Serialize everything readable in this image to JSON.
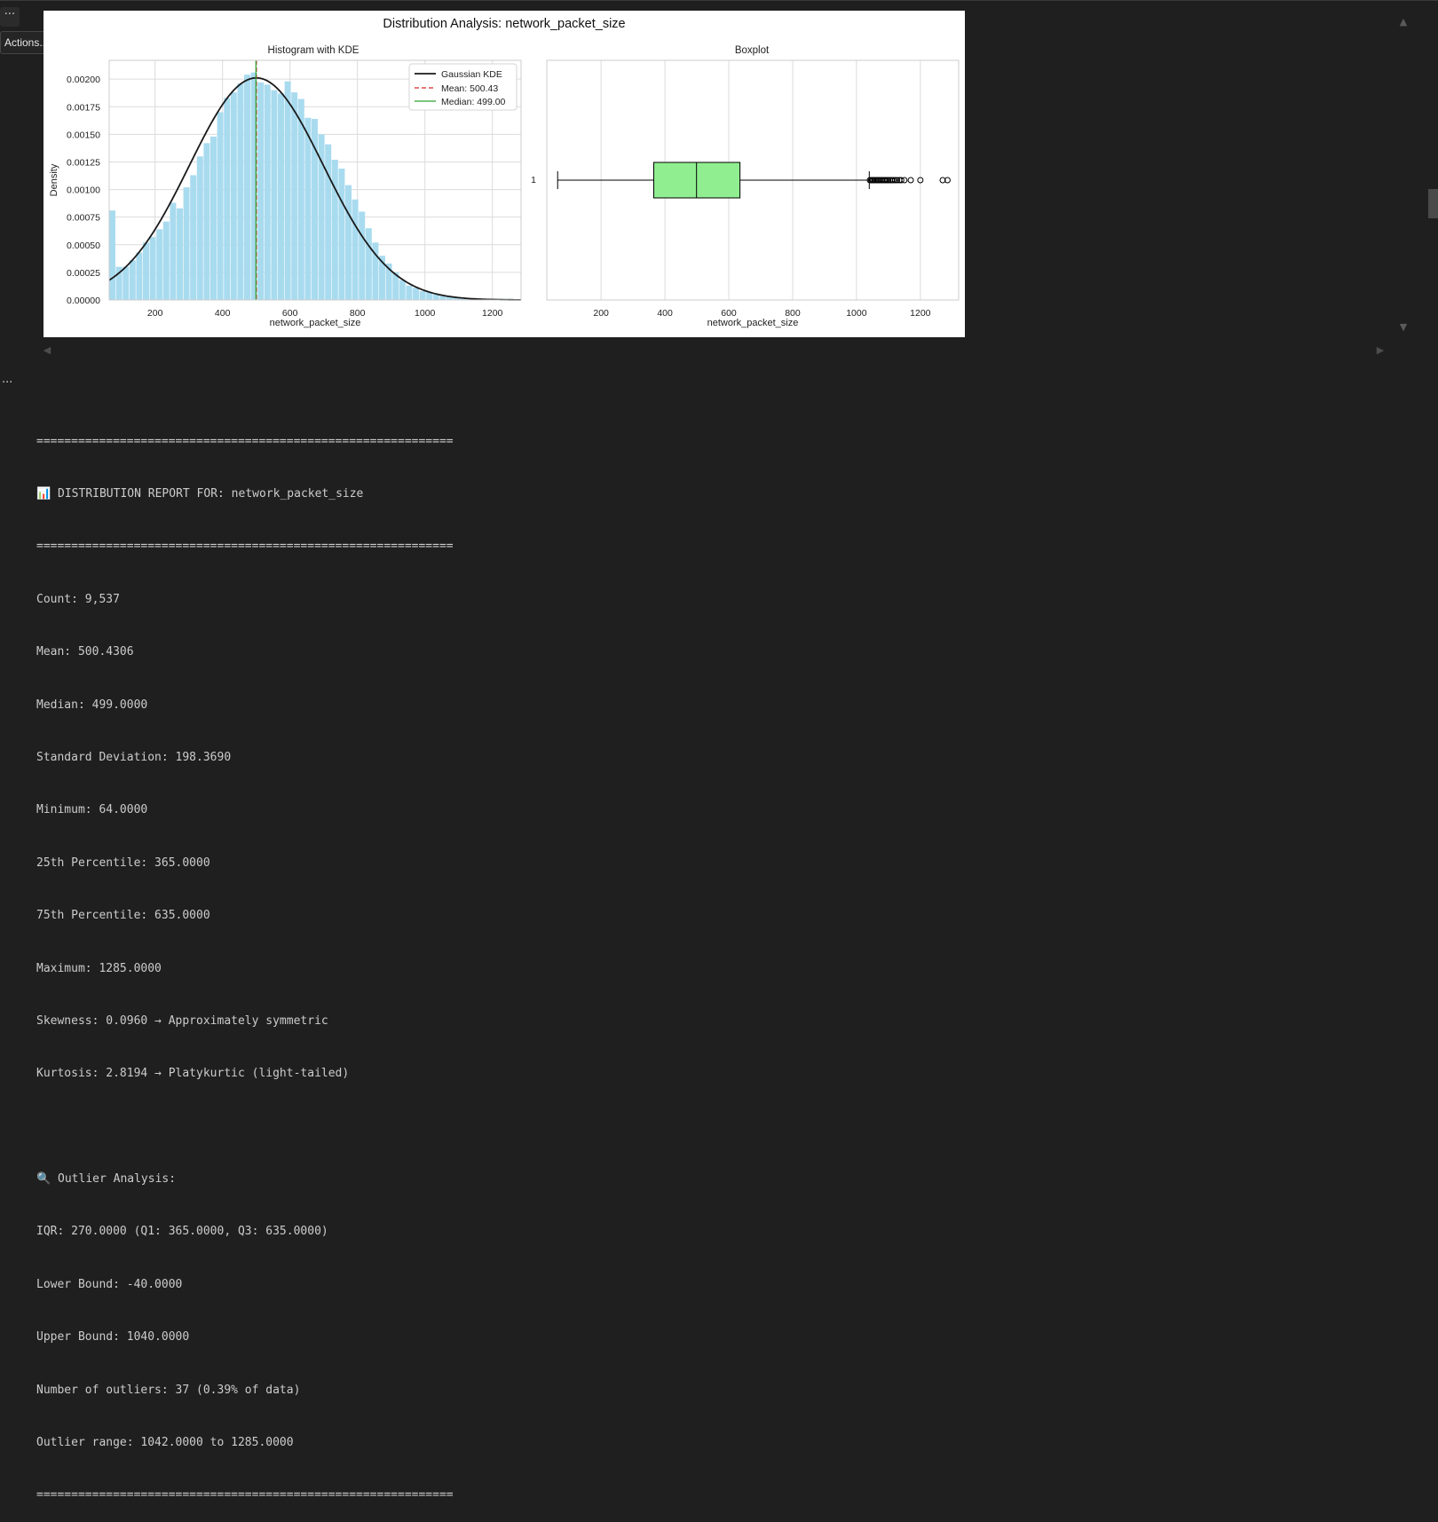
{
  "toolbar": {
    "actions_tooltip": "Actions...",
    "more_icon": "ellipsis-icon"
  },
  "figure": {
    "suptitle": "Distribution Analysis: network_packet_size",
    "histogram": {
      "title": "Histogram with KDE",
      "xlabel": "network_packet_size",
      "ylabel": "Density",
      "legend": [
        "Gaussian KDE",
        "Mean: 500.43",
        "Median: 499.00"
      ],
      "colors": {
        "bars": "#a9dbef",
        "kde": "#1a1a1a",
        "mean": "#d62728",
        "median": "#2ca02c"
      }
    },
    "boxplot": {
      "title": "Boxplot",
      "xlabel": "network_packet_size",
      "ytick": "1",
      "colors": {
        "box": "#90ee90"
      }
    }
  },
  "chart_data": [
    {
      "type": "bar",
      "title": "Histogram with KDE",
      "xlabel": "network_packet_size",
      "ylabel": "Density",
      "xlim": [
        64,
        1285
      ],
      "ylim": [
        0,
        0.00217
      ],
      "xticks": [
        "200",
        "400",
        "600",
        "800",
        "1000",
        "1200"
      ],
      "yticks": [
        "0.00000",
        "0.00025",
        "0.00050",
        "0.00075",
        "0.00100",
        "0.00125",
        "0.00150",
        "0.00175",
        "0.00200"
      ],
      "grid": true,
      "legend_position": "top-right",
      "bins": {
        "start": 64,
        "width": 20,
        "values": [
          0.00081,
          0.0003,
          0.0003,
          0.00036,
          0.00043,
          0.00052,
          0.00057,
          0.00064,
          0.00071,
          0.00088,
          0.00083,
          0.00102,
          0.00113,
          0.0013,
          0.00142,
          0.00148,
          0.0017,
          0.00183,
          0.00188,
          0.00196,
          0.00204,
          0.00206,
          0.00197,
          0.00195,
          0.0019,
          0.00187,
          0.00198,
          0.00188,
          0.00182,
          0.00165,
          0.00164,
          0.0015,
          0.00141,
          0.00127,
          0.00119,
          0.00104,
          0.00091,
          0.0008,
          0.00065,
          0.00052,
          0.0004,
          0.00033,
          0.00025,
          0.00018,
          0.00013,
          0.00011,
          8e-05,
          7e-05,
          5e-05,
          4e-05,
          3e-05,
          2e-05,
          1e-05,
          1e-05,
          1e-05,
          1e-05,
          1e-05,
          1e-05,
          1e-05,
          1e-05,
          0.0
        ]
      },
      "kde": {
        "label": "Gaussian KDE",
        "mean": 500.43,
        "std": 198.369
      },
      "mean_line": {
        "label": "Mean: 500.43",
        "x": 500.43
      },
      "median_line": {
        "label": "Median: 499.00",
        "x": 499.0
      }
    },
    {
      "type": "box",
      "title": "Boxplot",
      "xlabel": "network_packet_size",
      "xlim": [
        30,
        1320
      ],
      "xticks": [
        "200",
        "400",
        "600",
        "800",
        "1000",
        "1200"
      ],
      "grid": true,
      "min_whisker": 64,
      "q1": 365,
      "median": 499,
      "q3": 635,
      "max_whisker": 1040,
      "outliers": [
        1042,
        1046,
        1050,
        1053,
        1057,
        1061,
        1065,
        1068,
        1072,
        1076,
        1080,
        1084,
        1088,
        1092,
        1096,
        1100,
        1105,
        1110,
        1115,
        1121,
        1127,
        1134,
        1140,
        1150,
        1170,
        1200,
        1270,
        1285
      ]
    }
  ],
  "report": {
    "separator": "============================================================",
    "header": "📊 DISTRIBUTION REPORT FOR: network_packet_size",
    "stats": [
      "Count: 9,537",
      "Mean: 500.4306",
      "Median: 499.0000",
      "Standard Deviation: 198.3690",
      "Minimum: 64.0000",
      "25th Percentile: 365.0000",
      "75th Percentile: 635.0000",
      "Maximum: 1285.0000",
      "Skewness: 0.0960 → Approximately symmetric",
      "Kurtosis: 2.8194 → Platykurtic (light-tailed)"
    ],
    "outlier_header": "🔍 Outlier Analysis:",
    "outliers": [
      "IQR: 270.0000 (Q1: 365.0000, Q3: 635.0000)",
      "Lower Bound: -40.0000",
      "Upper Bound: 1040.0000",
      "Number of outliers: 37 (0.39% of data)",
      "Outlier range: 1042.0000 to 1285.0000"
    ]
  }
}
